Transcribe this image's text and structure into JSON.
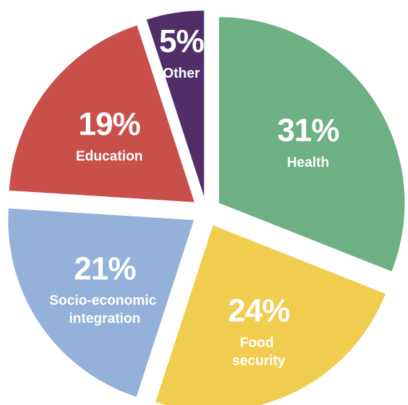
{
  "chart_data": {
    "type": "pie",
    "categories": [
      "Health",
      "Food security",
      "Socio-economic integration",
      "Education",
      "Other"
    ],
    "values": [
      31,
      24,
      21,
      19,
      5
    ],
    "value_labels": [
      "31%",
      "24%",
      "21%",
      "19%",
      "5%"
    ],
    "colors": [
      "#6db083",
      "#f0cd4f",
      "#94b1d9",
      "#c9504a",
      "#512e68"
    ]
  }
}
